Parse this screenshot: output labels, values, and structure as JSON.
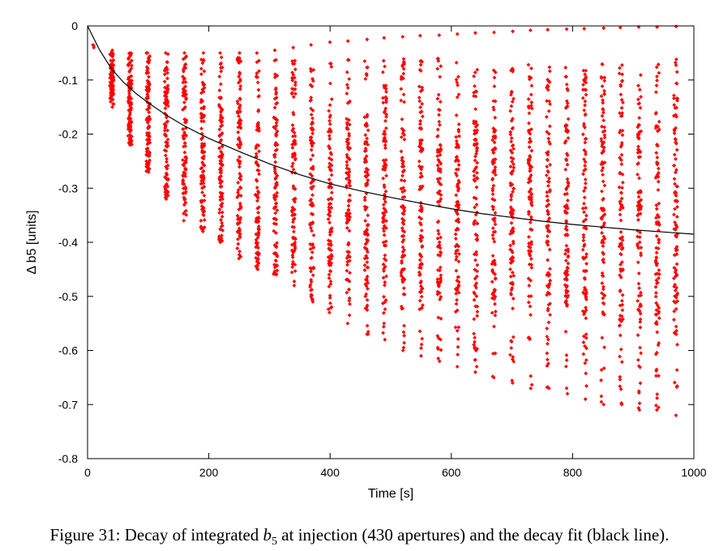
{
  "chart_data": {
    "type": "scatter",
    "title": "",
    "xlabel": "Time [s]",
    "ylabel": "Δ b5 [units]",
    "xlim": [
      0,
      1000
    ],
    "ylim": [
      -0.8,
      0
    ],
    "xticks": [
      0,
      200,
      400,
      600,
      800,
      1000
    ],
    "xtick_labels": [
      "0",
      "200",
      "400",
      "600",
      "800",
      "1000"
    ],
    "yticks": [
      0,
      -0.1,
      -0.2,
      -0.3,
      -0.4,
      -0.5,
      -0.6,
      -0.7,
      -0.8
    ],
    "ytick_labels": [
      "0",
      "-0.1",
      "-0.2",
      "-0.3",
      "-0.4",
      "-0.5",
      "-0.6",
      "-0.7",
      "-0.8"
    ],
    "grid": false,
    "legend": "none",
    "series": [
      {
        "kind": "scatter",
        "color": "#ff0000",
        "marker": "diamond",
        "n_points_per_time": 430,
        "times": [
          10,
          40,
          70,
          100,
          130,
          160,
          190,
          220,
          250,
          280,
          310,
          340,
          370,
          400,
          430,
          460,
          490,
          520,
          550,
          580,
          610,
          640,
          670,
          700,
          730,
          760,
          790,
          820,
          850,
          880,
          910,
          940,
          970
        ],
        "y_top": [
          -0.035,
          -0.045,
          -0.05,
          -0.05,
          -0.05,
          -0.05,
          -0.05,
          -0.05,
          -0.055,
          -0.06,
          -0.06,
          -0.06,
          -0.06,
          -0.06,
          -0.06,
          -0.06,
          -0.06,
          -0.06,
          -0.06,
          -0.06,
          -0.06,
          -0.06,
          -0.065,
          -0.07,
          -0.07,
          -0.07,
          -0.07,
          -0.07,
          -0.07,
          -0.07,
          -0.07,
          -0.06,
          -0.06
        ],
        "y_dense_top": [
          -0.035,
          -0.07,
          -0.09,
          -0.1,
          -0.11,
          -0.12,
          -0.14,
          -0.15,
          -0.16,
          -0.16,
          -0.17,
          -0.17,
          -0.17,
          -0.18,
          -0.18,
          -0.18,
          -0.18,
          -0.18,
          -0.18,
          -0.18,
          -0.19,
          -0.19,
          -0.19,
          -0.19,
          -0.19,
          -0.19,
          -0.19,
          -0.19,
          -0.19,
          -0.19,
          -0.19,
          -0.19,
          -0.19
        ],
        "y_dense_bottom": [
          -0.04,
          -0.13,
          -0.2,
          -0.25,
          -0.29,
          -0.32,
          -0.35,
          -0.37,
          -0.39,
          -0.41,
          -0.42,
          -0.43,
          -0.44,
          -0.45,
          -0.46,
          -0.47,
          -0.48,
          -0.48,
          -0.49,
          -0.5,
          -0.5,
          -0.51,
          -0.51,
          -0.52,
          -0.52,
          -0.53,
          -0.53,
          -0.54,
          -0.54,
          -0.55,
          -0.55,
          -0.56,
          -0.56
        ],
        "y_bottom": [
          -0.04,
          -0.15,
          -0.22,
          -0.27,
          -0.32,
          -0.36,
          -0.38,
          -0.4,
          -0.43,
          -0.45,
          -0.46,
          -0.48,
          -0.51,
          -0.53,
          -0.55,
          -0.57,
          -0.58,
          -0.6,
          -0.61,
          -0.62,
          -0.63,
          -0.64,
          -0.65,
          -0.66,
          -0.67,
          -0.67,
          -0.68,
          -0.69,
          -0.7,
          -0.7,
          -0.71,
          -0.71,
          -0.72
        ],
        "upper_outlier_y": [
          -0.035,
          -0.045,
          -0.05,
          -0.05,
          -0.05,
          -0.05,
          -0.05,
          -0.05,
          -0.05,
          -0.05,
          -0.045,
          -0.04,
          -0.035,
          -0.03,
          -0.028,
          -0.025,
          -0.022,
          -0.02,
          -0.018,
          -0.017,
          -0.015,
          -0.013,
          -0.012,
          -0.01,
          -0.008,
          -0.007,
          -0.006,
          -0.005,
          -0.004,
          -0.003,
          -0.002,
          -0.002,
          -0.001
        ]
      },
      {
        "kind": "line",
        "color": "#000000",
        "x": [
          0,
          20,
          40,
          60,
          80,
          100,
          130,
          160,
          200,
          250,
          300,
          350,
          400,
          450,
          500,
          550,
          600,
          650,
          700,
          750,
          800,
          850,
          900,
          950,
          1000
        ],
        "y": [
          0,
          -0.045,
          -0.08,
          -0.105,
          -0.125,
          -0.142,
          -0.165,
          -0.185,
          -0.208,
          -0.232,
          -0.255,
          -0.275,
          -0.292,
          -0.305,
          -0.317,
          -0.328,
          -0.338,
          -0.347,
          -0.354,
          -0.361,
          -0.367,
          -0.372,
          -0.377,
          -0.381,
          -0.385
        ]
      }
    ]
  },
  "caption": {
    "prefix": "Figure 31: Decay of integrated ",
    "symbol": "b",
    "subscript": "5",
    "suffix": " at injection (430 apertures) and the decay fit (black line)."
  }
}
